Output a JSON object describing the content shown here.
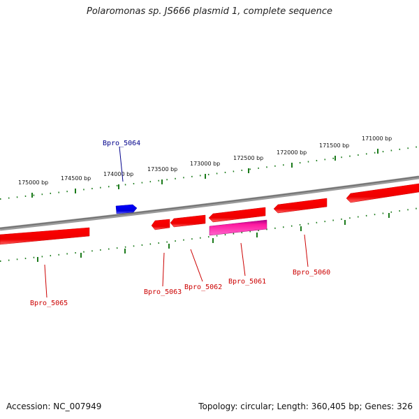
{
  "title": "Polaromonas sp. JS666 plasmid 1, complete sequence",
  "footer": {
    "accession": "Accession: NC_007949",
    "summary": "Topology: circular; Length: 360,405 bp; Genes: 326"
  },
  "ticks": [
    {
      "label": "175000 bp"
    },
    {
      "label": "174500 bp"
    },
    {
      "label": "174000 bp"
    },
    {
      "label": "173500 bp"
    },
    {
      "label": "173000 bp"
    },
    {
      "label": "172500 bp"
    },
    {
      "label": "172000 bp"
    },
    {
      "label": "171500 bp"
    },
    {
      "label": "171000 bp"
    }
  ],
  "genes": [
    {
      "name": "Bpro_5064",
      "strand": "+",
      "color": "#1a1aff"
    },
    {
      "name": "Bpro_5065",
      "strand": "-",
      "color": "#ff1a1a"
    },
    {
      "name": "Bpro_5063",
      "strand": "-",
      "color": "#ff1a1a"
    },
    {
      "name": "Bpro_5062",
      "strand": "-",
      "color": "#ff1a1a"
    },
    {
      "name": "Bpro_5061",
      "strand": "-",
      "color": "#ff1a1a"
    },
    {
      "name": "Bpro_5060",
      "strand": "-",
      "color": "#ff1a1a"
    }
  ],
  "colors": {
    "backbone": "#808080",
    "tick": "#1a7a1a",
    "forward_gene": "#1a1aff",
    "reverse_gene": "#ff1a1a",
    "feature_magenta": "#ff33aa",
    "forward_label": "#00008b",
    "reverse_label": "#cc0000"
  }
}
